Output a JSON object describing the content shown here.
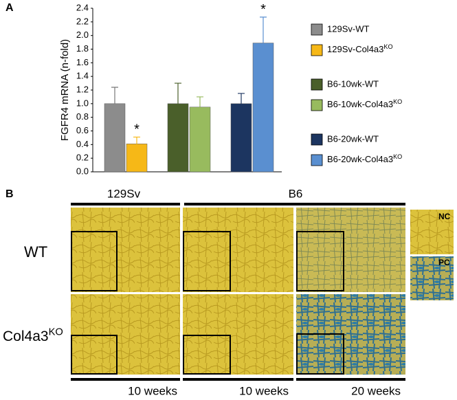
{
  "panel_labels": [
    "A",
    "B"
  ],
  "chart_data": {
    "type": "bar",
    "y_label": "FGFR4 mRNA (n-fold)",
    "ylim": [
      0,
      2.4
    ],
    "yticks": [
      {
        "value": 0,
        "label": "0.0"
      },
      0.2,
      0.4,
      0.6,
      0.8,
      {
        "value": 1,
        "label": "1.0"
      },
      1.2,
      1.4,
      1.6,
      1.8,
      {
        "value": 2,
        "label": "2.0"
      },
      2.2,
      2.4
    ],
    "series": [
      {
        "name": "129Sv-WT",
        "color": "#8c8c8c",
        "values": [
          1.0
        ],
        "errors": [
          0.24
        ]
      },
      {
        "name": "129Sv-Col4a3KO",
        "color": "#f6b817",
        "values": [
          0.41
        ],
        "errors": [
          0.1
        ],
        "marker": "*"
      },
      {
        "name": "B6-10wk-WT",
        "color": "#4a5f2a",
        "values": [
          1.0
        ],
        "errors": [
          0.3
        ]
      },
      {
        "name": "B6-10wk-Col4a3KO",
        "color": "#98bb5e",
        "values": [
          0.95
        ],
        "errors": [
          0.15
        ]
      },
      {
        "name": "B6-20wk-WT",
        "color": "#1c3560",
        "values": [
          1.0
        ],
        "errors": [
          0.15
        ]
      },
      {
        "name": "B6-20wk-Col4a3KO",
        "color": "#5a8fd0",
        "values": [
          1.89
        ],
        "errors": [
          0.38
        ],
        "marker": "*"
      }
    ]
  },
  "micrographs": {
    "strains": [
      "129Sv",
      "B6"
    ],
    "rows": [
      "WT",
      "Col4a3KO"
    ],
    "controls": [
      "NC",
      "PC"
    ],
    "ages": [
      "10 weeks",
      "10 weeks",
      "20 weeks"
    ]
  }
}
